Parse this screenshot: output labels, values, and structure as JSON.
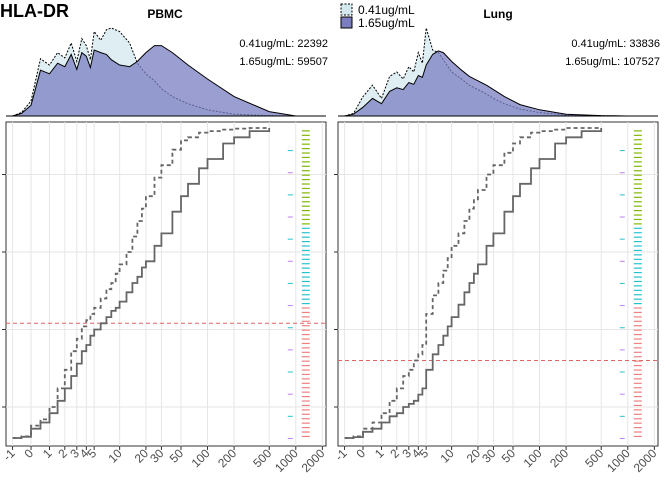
{
  "figure": {
    "title": "HLA-DR",
    "legend": [
      {
        "label": "0.41ug/mL",
        "fill": "#d3e8ee"
      },
      {
        "label": "1.65ug/mL",
        "fill": "#7a7ec0"
      }
    ]
  },
  "chart_data": [
    {
      "panel": "PBMC",
      "type": "area",
      "title": "PBMC",
      "annotations": [
        "0.41ug/mL: 22392",
        "1.65ug/mL: 59507"
      ],
      "series": [
        {
          "name": "0.41ug/mL",
          "x": [
            -1,
            -0.5,
            0,
            0.5,
            1,
            1.5,
            2,
            2.5,
            3,
            3.5,
            4,
            4.5,
            5,
            6,
            7,
            8,
            10,
            13,
            16,
            20,
            25,
            30,
            40,
            60,
            100,
            200,
            500,
            1000,
            2000
          ],
          "y": [
            0,
            0.04,
            0.17,
            0.65,
            0.58,
            0.72,
            0.66,
            0.83,
            0.62,
            0.88,
            0.8,
            0.64,
            0.96,
            0.86,
            0.98,
            1.0,
            0.96,
            0.83,
            0.6,
            0.48,
            0.4,
            0.31,
            0.22,
            0.14,
            0.07,
            0.02,
            0.005,
            0,
            0
          ]
        },
        {
          "name": "1.65ug/mL",
          "x": [
            -1,
            -0.5,
            0,
            0.5,
            1,
            1.5,
            2,
            2.5,
            3,
            3.5,
            4,
            4.5,
            5,
            6,
            7,
            8,
            10,
            13,
            16,
            20,
            25,
            30,
            40,
            60,
            100,
            200,
            500,
            1000,
            2000
          ],
          "y": [
            0,
            0.03,
            0.12,
            0.52,
            0.48,
            0.6,
            0.56,
            0.7,
            0.53,
            0.72,
            0.68,
            0.55,
            0.75,
            0.72,
            0.7,
            0.64,
            0.58,
            0.56,
            0.62,
            0.72,
            0.8,
            0.8,
            0.72,
            0.58,
            0.42,
            0.22,
            0.05,
            0,
            0
          ]
        }
      ]
    },
    {
      "panel": "PBMC",
      "type": "line",
      "xlabel": "",
      "ylabel": "",
      "x_ticks": [
        "-1",
        "0",
        "1",
        "2",
        "3",
        "4",
        "5",
        "10",
        "20",
        "30",
        "50",
        "100",
        "200",
        "500",
        "1000",
        "2000"
      ],
      "ylim": [
        0,
        1
      ],
      "reference_y": 0.37,
      "series": [
        {
          "name": "0.41ug/mL",
          "style": "dashed",
          "x": [
            -1,
            -0.5,
            0,
            0.5,
            1,
            1.5,
            2,
            2.5,
            3,
            3.5,
            4,
            4.5,
            5,
            6,
            7,
            8,
            9,
            10,
            12,
            14,
            16,
            18,
            20,
            25,
            30,
            40,
            50,
            60,
            80,
            100,
            150,
            200,
            300,
            500
          ],
          "y": [
            0,
            0.005,
            0.04,
            0.06,
            0.1,
            0.16,
            0.22,
            0.28,
            0.32,
            0.36,
            0.38,
            0.4,
            0.42,
            0.45,
            0.48,
            0.5,
            0.53,
            0.56,
            0.6,
            0.65,
            0.7,
            0.74,
            0.78,
            0.84,
            0.88,
            0.93,
            0.96,
            0.97,
            0.985,
            0.99,
            0.995,
            0.998,
            1,
            1
          ]
        },
        {
          "name": "1.65ug/mL",
          "style": "solid",
          "x": [
            -1,
            -0.5,
            0,
            0.5,
            1,
            1.5,
            2,
            2.5,
            3,
            3.5,
            4,
            4.5,
            5,
            6,
            7,
            8,
            9,
            10,
            12,
            14,
            16,
            18,
            20,
            25,
            30,
            40,
            50,
            60,
            80,
            100,
            150,
            200,
            300,
            500
          ],
          "y": [
            0,
            0.004,
            0.03,
            0.05,
            0.08,
            0.12,
            0.16,
            0.2,
            0.24,
            0.28,
            0.3,
            0.33,
            0.35,
            0.37,
            0.39,
            0.41,
            0.42,
            0.44,
            0.47,
            0.5,
            0.52,
            0.55,
            0.57,
            0.62,
            0.66,
            0.73,
            0.78,
            0.82,
            0.87,
            0.9,
            0.95,
            0.97,
            0.99,
            1
          ]
        }
      ]
    },
    {
      "panel": "Lung",
      "type": "area",
      "title": "Lung",
      "annotations": [
        "0.41ug/mL: 33836",
        "1.65ug/mL: 107527"
      ],
      "series": [
        {
          "name": "0.41ug/mL",
          "x": [
            -1,
            -0.5,
            0,
            0.5,
            1,
            1.5,
            2,
            2.5,
            3,
            3.5,
            4,
            4.5,
            5,
            6,
            7,
            8,
            10,
            13,
            16,
            20,
            25,
            30,
            40,
            60,
            100,
            200,
            500,
            1000,
            2000
          ],
          "y": [
            0,
            0.03,
            0.22,
            0.35,
            0.2,
            0.45,
            0.5,
            0.42,
            0.56,
            0.5,
            0.72,
            0.6,
            1.0,
            0.75,
            0.72,
            0.64,
            0.5,
            0.42,
            0.35,
            0.3,
            0.25,
            0.2,
            0.14,
            0.08,
            0.04,
            0.01,
            0.002,
            0,
            0
          ]
        },
        {
          "name": "1.65ug/mL",
          "x": [
            -1,
            -0.5,
            0,
            0.5,
            1,
            1.5,
            2,
            2.5,
            3,
            3.5,
            4,
            4.5,
            5,
            6,
            7,
            8,
            10,
            13,
            16,
            20,
            25,
            30,
            40,
            60,
            100,
            200,
            500,
            1000,
            2000
          ],
          "y": [
            0,
            0.02,
            0.1,
            0.2,
            0.14,
            0.28,
            0.32,
            0.3,
            0.38,
            0.36,
            0.46,
            0.44,
            0.58,
            0.7,
            0.74,
            0.72,
            0.62,
            0.52,
            0.45,
            0.4,
            0.35,
            0.3,
            0.22,
            0.13,
            0.07,
            0.02,
            0.004,
            0,
            0
          ]
        }
      ]
    },
    {
      "panel": "Lung",
      "type": "line",
      "xlabel": "",
      "ylabel": "",
      "x_ticks": [
        "-1",
        "0",
        "1",
        "2",
        "3",
        "4",
        "5",
        "10",
        "20",
        "30",
        "50",
        "100",
        "200",
        "500",
        "1000",
        "2000"
      ],
      "ylim": [
        0,
        1
      ],
      "reference_y": 0.25,
      "series": [
        {
          "name": "0.41ug/mL",
          "style": "dashed",
          "x": [
            -1,
            -0.5,
            0,
            0.5,
            1,
            1.5,
            2,
            2.5,
            3,
            3.5,
            4,
            4.5,
            5,
            6,
            7,
            8,
            9,
            10,
            12,
            14,
            16,
            18,
            20,
            25,
            30,
            40,
            50,
            60,
            80,
            100,
            150,
            200,
            300,
            500
          ],
          "y": [
            0,
            0.005,
            0.03,
            0.05,
            0.08,
            0.12,
            0.16,
            0.2,
            0.22,
            0.25,
            0.27,
            0.3,
            0.4,
            0.46,
            0.5,
            0.54,
            0.58,
            0.62,
            0.66,
            0.7,
            0.74,
            0.77,
            0.8,
            0.85,
            0.88,
            0.92,
            0.95,
            0.97,
            0.985,
            0.99,
            0.995,
            1,
            1,
            1
          ]
        },
        {
          "name": "1.65ug/mL",
          "style": "solid",
          "x": [
            -1,
            -0.5,
            0,
            0.5,
            1,
            1.5,
            2,
            2.5,
            3,
            3.5,
            4,
            4.5,
            5,
            6,
            7,
            8,
            9,
            10,
            12,
            14,
            16,
            18,
            20,
            25,
            30,
            40,
            50,
            60,
            80,
            100,
            150,
            200,
            300,
            500
          ],
          "y": [
            0,
            0.003,
            0.02,
            0.03,
            0.05,
            0.07,
            0.08,
            0.1,
            0.11,
            0.12,
            0.14,
            0.16,
            0.22,
            0.27,
            0.3,
            0.33,
            0.36,
            0.39,
            0.43,
            0.47,
            0.5,
            0.53,
            0.56,
            0.62,
            0.66,
            0.73,
            0.78,
            0.82,
            0.87,
            0.9,
            0.95,
            0.97,
            0.99,
            1
          ]
        }
      ]
    }
  ]
}
